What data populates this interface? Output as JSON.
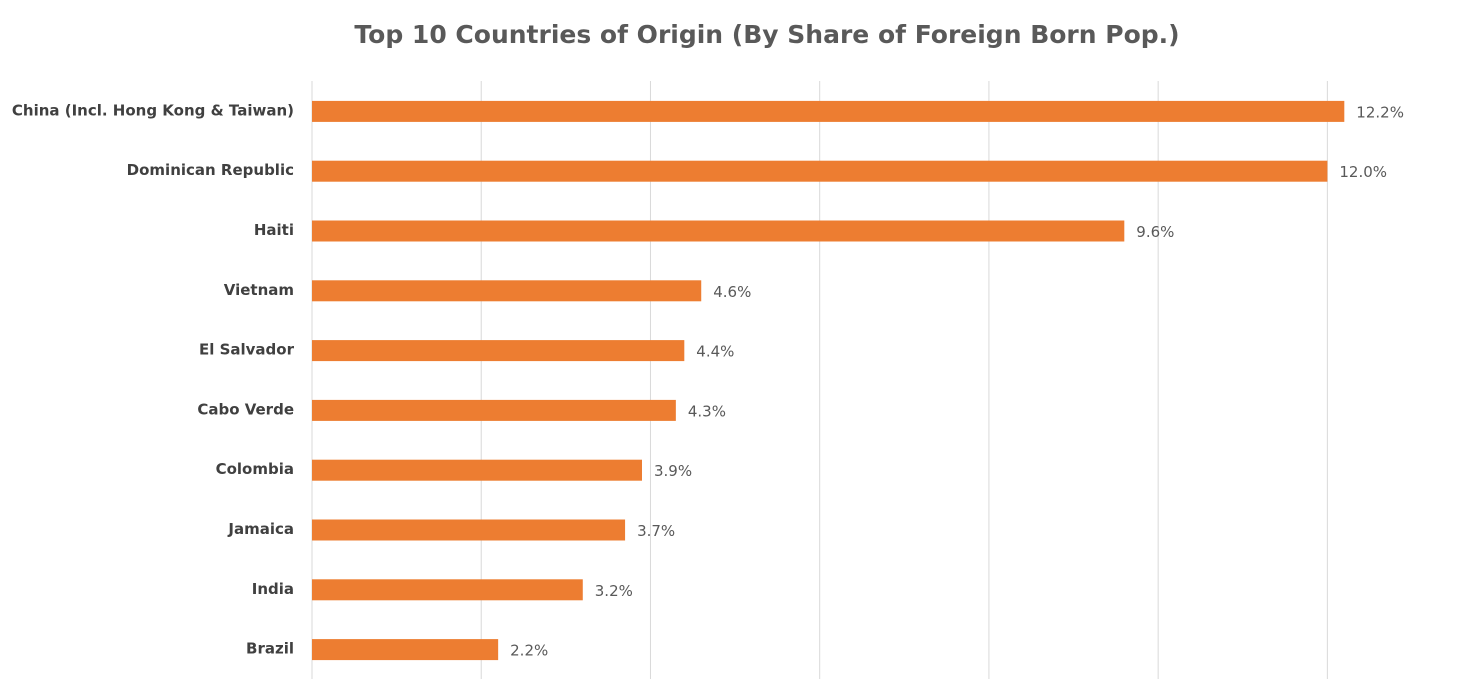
{
  "chart_data": {
    "type": "bar",
    "orientation": "horizontal",
    "title": "Top 10 Countries of Origin (By Share of Foreign Born Pop.)",
    "categories": [
      "China (Incl. Hong Kong & Taiwan)",
      "Dominican Republic",
      "Haiti",
      "Vietnam",
      "El Salvador",
      "Cabo Verde",
      "Colombia",
      "Jamaica",
      "India",
      "Brazil"
    ],
    "values": [
      12.2,
      12.0,
      9.6,
      4.6,
      4.4,
      4.3,
      3.9,
      3.7,
      3.2,
      2.2
    ],
    "value_labels": [
      "12.2%",
      "12.0%",
      "9.6%",
      "4.6%",
      "4.4%",
      "4.3%",
      "3.9%",
      "3.7%",
      "3.2%",
      "2.2%"
    ],
    "color": "#ed7d31",
    "xlim": [
      0,
      13
    ],
    "xticks": [
      0,
      2,
      4,
      6,
      8,
      10,
      12
    ],
    "grid": true
  }
}
